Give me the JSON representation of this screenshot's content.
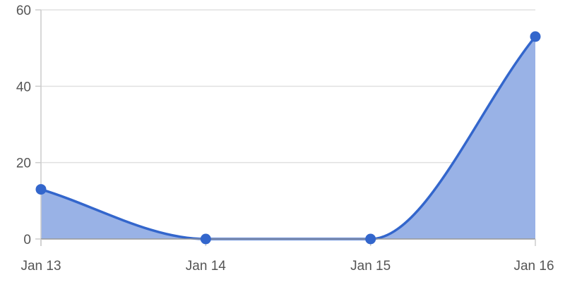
{
  "chart_data": {
    "type": "area",
    "title": "",
    "xlabel": "",
    "ylabel": "",
    "categories": [
      "Jan 13",
      "Jan 14",
      "Jan 15",
      "Jan 16"
    ],
    "series": [
      {
        "values": [
          13,
          0,
          0,
          53
        ]
      }
    ],
    "ylim": [
      0,
      60
    ],
    "yticks": [
      "0",
      "20",
      "40",
      "60"
    ],
    "grid": true,
    "legend": "none",
    "colors": {
      "line": "#3366cc",
      "fill": "#99b2e6",
      "point": "#3366cc"
    }
  }
}
